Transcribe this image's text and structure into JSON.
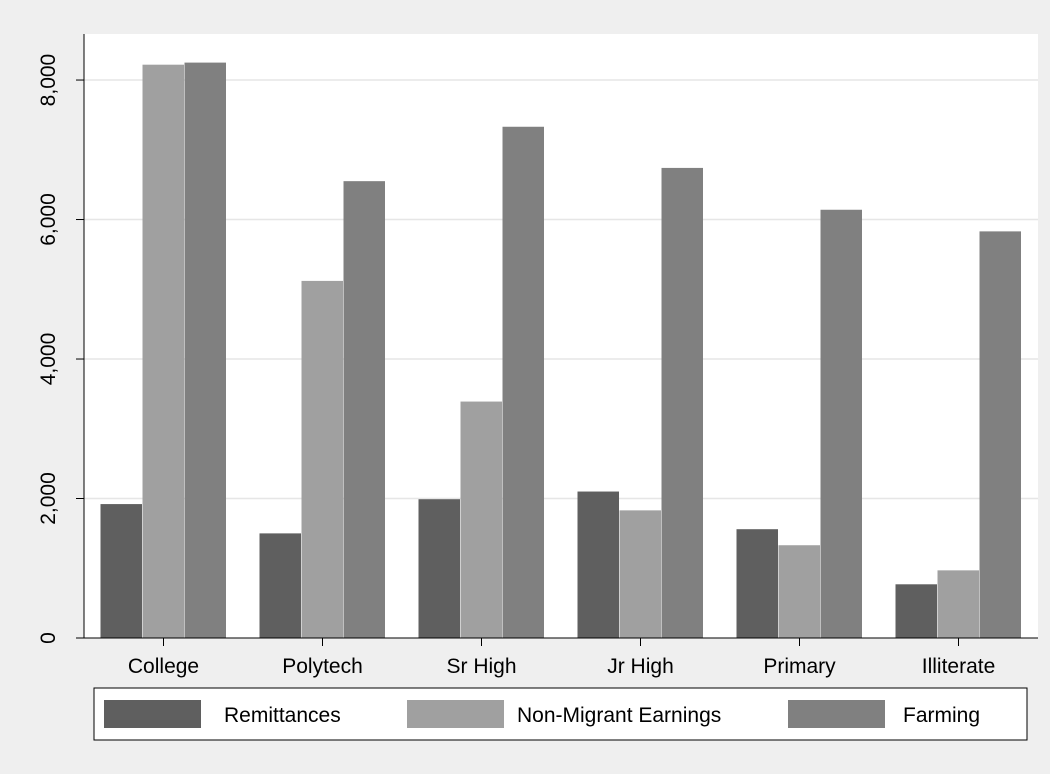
{
  "chart_data": {
    "type": "bar",
    "categories": [
      "College",
      "Polytech",
      "Sr High",
      "Jr High",
      "Primary",
      "Illiterate"
    ],
    "series": [
      {
        "name": "Remittances",
        "color": "#5f5f5f",
        "values": [
          1920,
          1500,
          1990,
          2100,
          1560,
          770
        ]
      },
      {
        "name": "Non-Migrant Earnings",
        "color": "#a0a0a0",
        "values": [
          8220,
          5120,
          3390,
          1830,
          1330,
          970
        ]
      },
      {
        "name": "Farming",
        "color": "#808080",
        "values": [
          8250,
          6550,
          7330,
          6740,
          6140,
          5830
        ]
      }
    ],
    "ylim": [
      0,
      8660
    ],
    "yticks": [
      0,
      2000,
      4000,
      6000,
      8000
    ],
    "ytick_labels": [
      "0",
      "2,000",
      "4,000",
      "6,000",
      "8,000"
    ],
    "grid": true,
    "legend_position": "bottom",
    "plot_background": "#ffffff",
    "page_background": "#efefef",
    "title": "",
    "xlabel": "",
    "ylabel": ""
  }
}
